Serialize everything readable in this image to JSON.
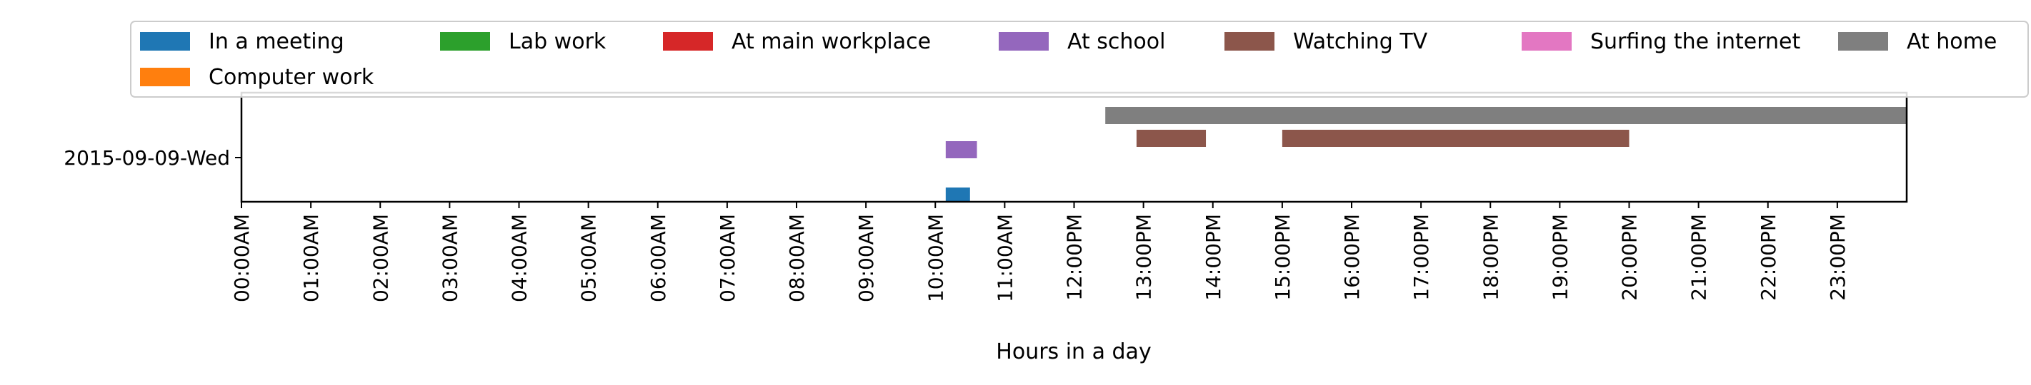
{
  "chart_data": {
    "type": "gantt",
    "xlabel": "Hours in a day",
    "xlim": [
      0,
      24
    ],
    "x_ticks": [
      "00:00AM",
      "01:00AM",
      "02:00AM",
      "03:00AM",
      "04:00AM",
      "05:00AM",
      "06:00AM",
      "07:00AM",
      "08:00AM",
      "09:00AM",
      "10:00AM",
      "11:00AM",
      "12:00PM",
      "13:00PM",
      "14:00PM",
      "15:00PM",
      "16:00PM",
      "17:00PM",
      "18:00PM",
      "19:00PM",
      "20:00PM",
      "21:00PM",
      "22:00PM",
      "23:00PM"
    ],
    "y_categories": [
      "2015-09-09-Wed"
    ],
    "legend_position": "top",
    "series": [
      {
        "name": "In a meeting",
        "color": "#1f77b4",
        "segments": [
          [
            10.15,
            10.5
          ]
        ]
      },
      {
        "name": "Lab work",
        "color": "#2ca02c",
        "segments": []
      },
      {
        "name": "At main workplace",
        "color": "#d62728",
        "segments": []
      },
      {
        "name": "At school",
        "color": "#9467bd",
        "segments": [
          [
            10.15,
            10.6
          ]
        ]
      },
      {
        "name": "Watching TV",
        "color": "#8c564b",
        "segments": [
          [
            12.9,
            13.9
          ],
          [
            15.0,
            20.0
          ]
        ]
      },
      {
        "name": "Surfing the internet",
        "color": "#e377c2",
        "segments": []
      },
      {
        "name": "At home",
        "color": "#7f7f7f",
        "segments": [
          [
            12.45,
            24.0
          ]
        ]
      },
      {
        "name": "Computer work",
        "color": "#ff7f0e",
        "segments": []
      }
    ]
  }
}
